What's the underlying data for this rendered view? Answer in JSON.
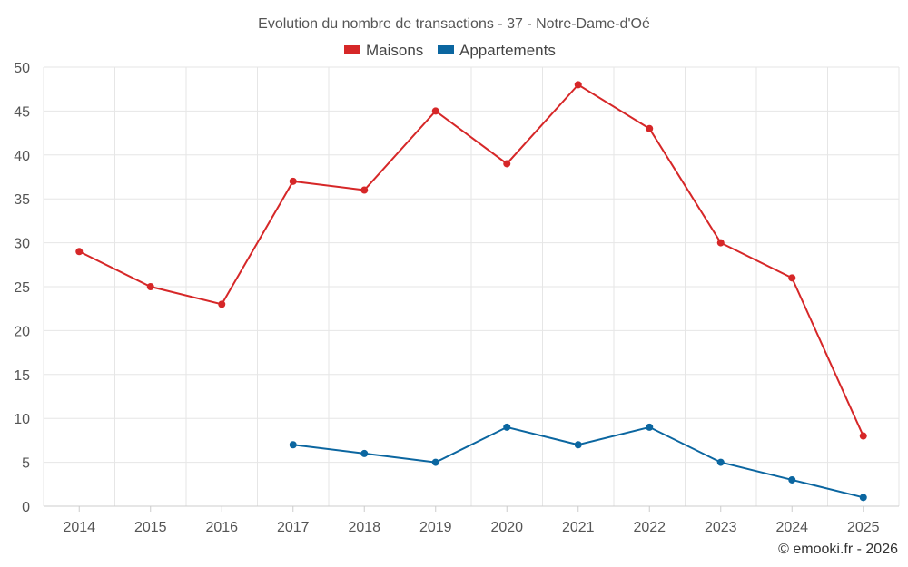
{
  "chart_data": {
    "type": "line",
    "title": "Evolution du nombre de transactions - 37 - Notre-Dame-d'Oé",
    "xlabel": "",
    "ylabel": "",
    "categories": [
      "2014",
      "2015",
      "2016",
      "2017",
      "2018",
      "2019",
      "2020",
      "2021",
      "2022",
      "2023",
      "2024",
      "2025"
    ],
    "ylim": [
      0,
      50
    ],
    "yticks": [
      0,
      5,
      10,
      15,
      20,
      25,
      30,
      35,
      40,
      45,
      50
    ],
    "grid": true,
    "legend_position": "top-center",
    "series": [
      {
        "name": "Maisons",
        "color": "#d62728",
        "values": [
          29,
          25,
          23,
          37,
          36,
          45,
          39,
          48,
          43,
          30,
          26,
          8
        ]
      },
      {
        "name": "Appartements",
        "color": "#0b66a0",
        "values": [
          null,
          null,
          null,
          7,
          6,
          5,
          9,
          7,
          9,
          5,
          3,
          1
        ]
      }
    ]
  },
  "credit": "© emooki.fr - 2026"
}
